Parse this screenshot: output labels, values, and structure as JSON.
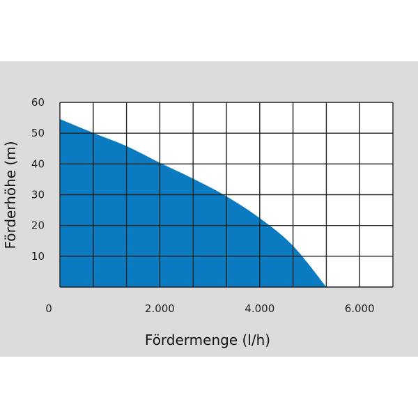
{
  "chart_data": {
    "type": "area",
    "title": "",
    "xlabel": "Fördermenge (l/h)",
    "ylabel": "Förderhöhe (m)",
    "xlim": [
      0,
      6667
    ],
    "ylim": [
      0,
      60
    ],
    "xticks": [
      0,
      2000,
      4000,
      6000
    ],
    "xtick_labels": [
      "0",
      "2.000",
      "4.000",
      "6.000"
    ],
    "yticks": [
      10,
      20,
      30,
      40,
      50,
      60
    ],
    "ytick_labels": [
      "10",
      "20",
      "30",
      "40",
      "50",
      "60"
    ],
    "grid": true,
    "x_grid_step": 666.7,
    "y_grid_step": 10,
    "x": [
      0,
      667,
      1333,
      2000,
      2667,
      3333,
      4000,
      4667,
      5333
    ],
    "y": [
      54.6,
      50.1,
      45.8,
      40.4,
      35.2,
      29.5,
      22.4,
      13.4,
      0
    ],
    "colors": {
      "fill": "#0a7bc1",
      "background": "#dcdcdc",
      "plot_bg": "#ffffff",
      "grid": "#222222"
    }
  }
}
